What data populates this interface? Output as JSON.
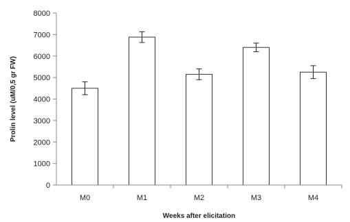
{
  "chart_data": {
    "type": "bar",
    "categories": [
      "M0",
      "M1",
      "M2",
      "M3",
      "M4"
    ],
    "values": [
      4500,
      6880,
      5150,
      6400,
      5250
    ],
    "errors": [
      300,
      250,
      250,
      200,
      300
    ],
    "title": "",
    "xlabel": "Weeks after elicitation",
    "ylabel": "Prolin level (uM/0,5 gr FW)",
    "ylim": [
      0,
      8000
    ],
    "yticks": [
      0,
      1000,
      2000,
      3000,
      4000,
      5000,
      6000,
      7000,
      8000
    ],
    "grid": false,
    "legend": "none",
    "colors": {
      "bar_fill": "#ffffff",
      "bar_stroke": "#333333",
      "axis": "#888888",
      "text": "#222222"
    }
  }
}
